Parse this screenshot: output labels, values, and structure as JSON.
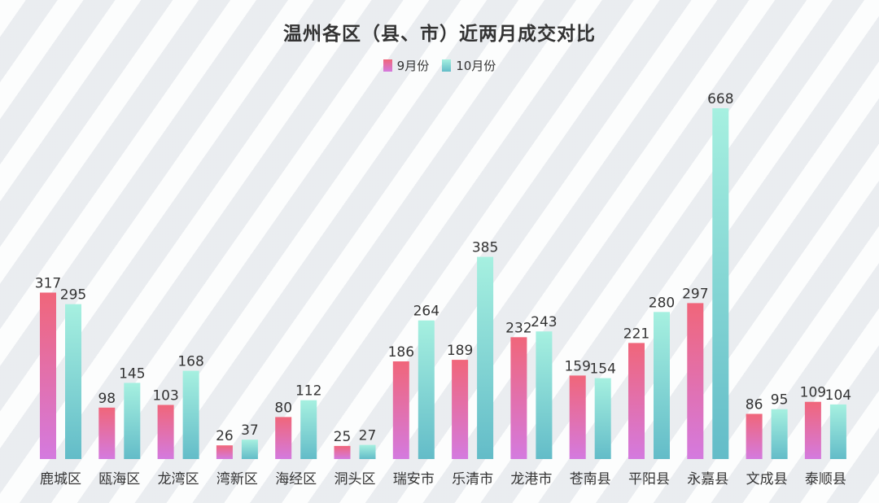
{
  "chart_data": {
    "type": "bar",
    "title": "温州各区（县、市）近两月成交对比",
    "categories": [
      "鹿城区",
      "瓯海区",
      "龙湾区",
      "湾新区",
      "海经区",
      "洞头区",
      "瑞安市",
      "乐清市",
      "龙港市",
      "苍南县",
      "平阳县",
      "永嘉县",
      "文成县",
      "泰顺县"
    ],
    "series": [
      {
        "name": "9月份",
        "color_top": "#f0667a",
        "color_bottom": "#d47adf",
        "values": [
          317,
          98,
          103,
          26,
          80,
          25,
          186,
          189,
          232,
          159,
          221,
          297,
          86,
          109
        ]
      },
      {
        "name": "10月份",
        "color_top": "#a6f0e0",
        "color_bottom": "#63bcc8",
        "values": [
          295,
          145,
          168,
          37,
          112,
          27,
          264,
          385,
          243,
          154,
          280,
          668,
          95,
          104
        ]
      }
    ],
    "ylim": [
      0,
      668
    ],
    "grid": false,
    "legend_position": "top-center",
    "data_labels": true
  }
}
